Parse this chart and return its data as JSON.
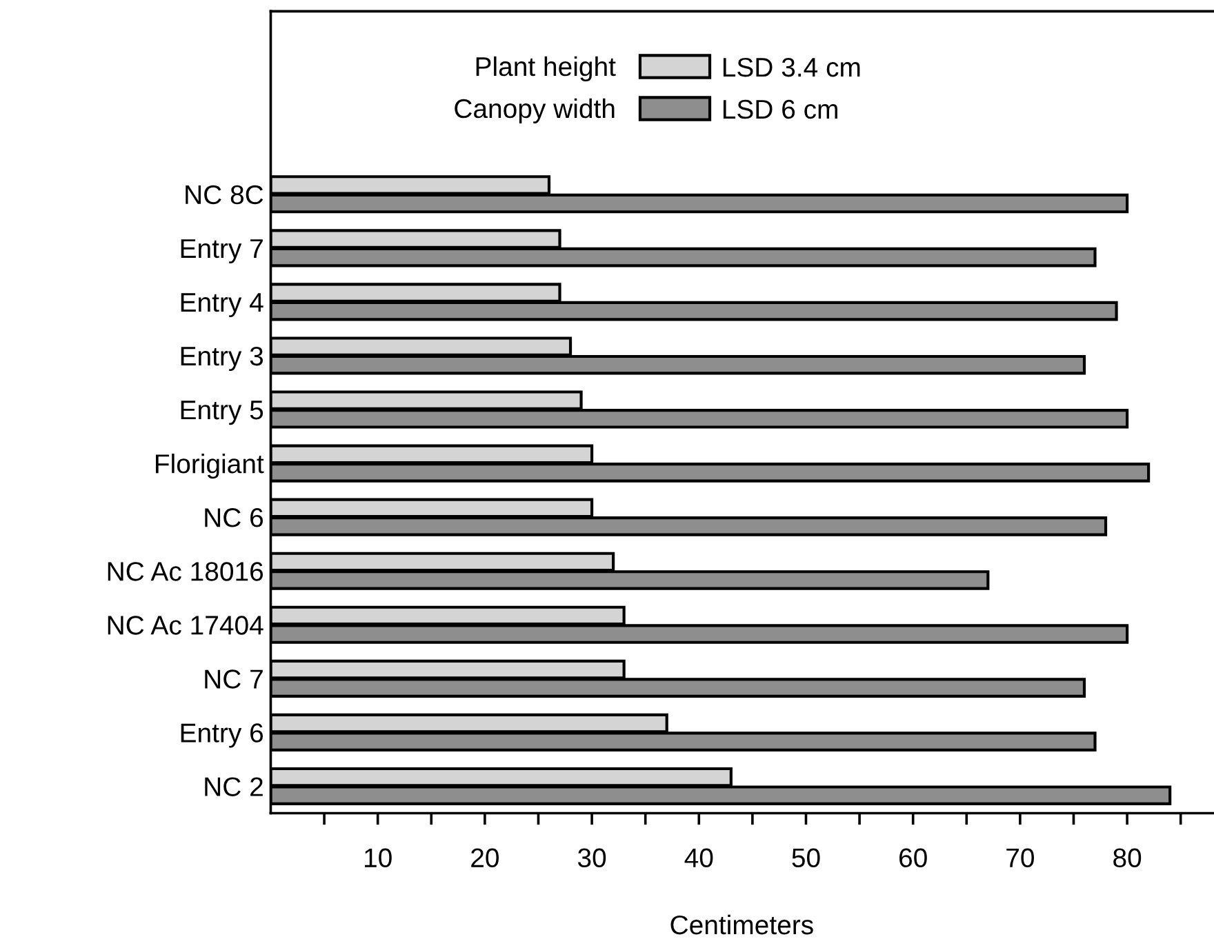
{
  "chart_data": {
    "type": "bar",
    "orientation": "horizontal",
    "xlabel": "Centimeters",
    "categories": [
      "NC 8C",
      "Entry 7",
      "Entry 4",
      "Entry 3",
      "Entry 5",
      "Florigiant",
      "NC 6",
      "NC Ac 18016",
      "NC Ac 17404",
      "NC 7",
      "Entry 6",
      "NC 2"
    ],
    "series": [
      {
        "name": "Plant height",
        "color": "#d4d4d4",
        "values": [
          26,
          27,
          27,
          28,
          29,
          30,
          30,
          32,
          33,
          33,
          37,
          43
        ]
      },
      {
        "name": "Canopy width",
        "color": "#8e8e8e",
        "values": [
          80,
          77,
          79,
          76,
          80,
          82,
          78,
          67,
          80,
          76,
          77,
          84
        ]
      }
    ],
    "annotations": [
      "LSD 3.4 cm",
      "LSD 6 cm"
    ],
    "xlim": [
      0,
      88
    ],
    "xticks": [
      {
        "value": 5,
        "label": null
      },
      10,
      {
        "value": 15,
        "label": null
      },
      20,
      {
        "value": 25,
        "label": null
      },
      30,
      {
        "value": 35,
        "label": null
      },
      40,
      {
        "value": 45,
        "label": null
      },
      50,
      {
        "value": 55,
        "label": null
      },
      60,
      {
        "value": 65,
        "label": null
      },
      70,
      {
        "value": 75,
        "label": null
      },
      80,
      {
        "value": 85,
        "label": null
      }
    ],
    "legend": "top",
    "grid": false
  }
}
